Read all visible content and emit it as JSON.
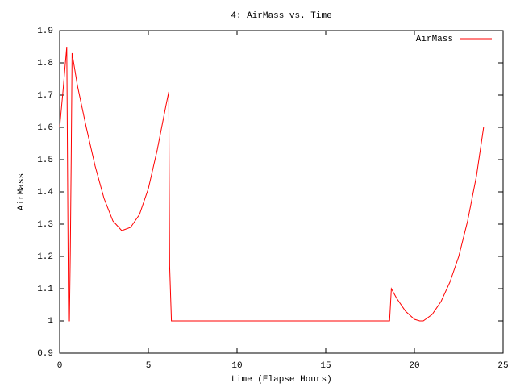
{
  "chart_data": {
    "type": "line",
    "title": "4: AirMass vs. Time",
    "x_label": "time (Elapse Hours)",
    "y_label": "AirMass",
    "x": [
      0,
      0.2,
      0.4,
      0.5,
      0.55,
      0.6,
      0.65,
      0.7,
      1,
      1.5,
      2,
      2.5,
      3,
      3.5,
      4,
      4.5,
      5,
      5.5,
      6,
      6.15,
      6.2,
      6.3,
      10,
      15,
      18.6,
      18.7,
      19,
      19.5,
      20,
      20.3,
      20.5,
      21,
      21.5,
      22,
      22.5,
      23,
      23.5,
      23.9
    ],
    "series": [
      {
        "name": "AirMass",
        "color": "#ff0000",
        "values": [
          1.6,
          1.72,
          1.85,
          1.0,
          1.0,
          1.21,
          1.5,
          1.83,
          1.73,
          1.6,
          1.48,
          1.38,
          1.31,
          1.28,
          1.29,
          1.33,
          1.41,
          1.53,
          1.67,
          1.71,
          1.17,
          1.0,
          1.0,
          1.0,
          1.0,
          1.1,
          1.07,
          1.03,
          1.005,
          1.0,
          1.0,
          1.02,
          1.06,
          1.12,
          1.2,
          1.31,
          1.45,
          1.6
        ]
      }
    ],
    "xlim": [
      0,
      25
    ],
    "xticks": [
      0,
      5,
      10,
      15,
      20,
      25
    ],
    "ylim": [
      0.9,
      1.9
    ],
    "yticks": [
      0.9,
      1,
      1.1,
      1.2,
      1.3,
      1.4,
      1.5,
      1.6,
      1.7,
      1.8,
      1.9
    ],
    "grid": false,
    "legend": "top-right"
  }
}
